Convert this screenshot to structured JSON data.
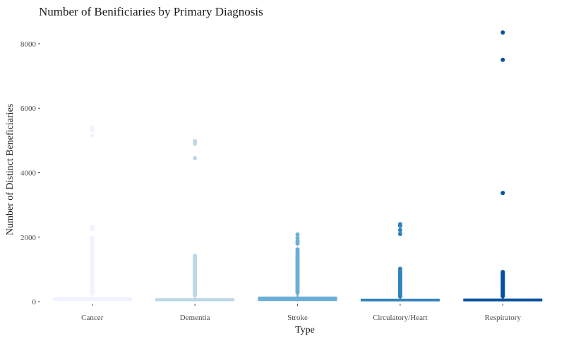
{
  "chart_data": {
    "type": "boxplot",
    "title": "Number of Benificiaries by Primary Diagnosis",
    "xlabel": "Type",
    "ylabel": "Number of Distinct Beneficiaries",
    "ylim": [
      -20,
      8700
    ],
    "y_ticks": [
      0,
      2000,
      4000,
      6000,
      8000
    ],
    "y_tick_labels": [
      "0",
      "2000",
      "4000",
      "6000",
      "8000"
    ],
    "grid": false,
    "legend": "none",
    "categories": [
      "Cancer",
      "Dementia",
      "Stroke",
      "Circulatory/Heart",
      "Respiratory"
    ],
    "colors": [
      "#eff3ff",
      "#bdd7e7",
      "#6baed6",
      "#3182bd",
      "#08519c"
    ],
    "series": [
      {
        "box": {
          "q1": 40,
          "median": 70,
          "q3": 120,
          "whisker_low": 11,
          "whisker_high": 240
        },
        "outliers": [
          5400,
          5320,
          5150,
          2320,
          2260,
          1980,
          1950,
          1920,
          1890,
          1860,
          1820,
          1780,
          1740,
          1700,
          1660,
          1620,
          1580,
          1540,
          1500,
          1460,
          1420,
          1380,
          1340,
          1300,
          1260,
          1220,
          1180,
          1140,
          1100,
          1060,
          1020,
          980,
          940,
          900,
          860,
          820,
          780,
          740,
          700,
          660,
          620,
          580,
          540,
          500,
          460,
          420,
          380,
          340,
          300,
          270
        ]
      },
      {
        "box": {
          "q1": 30,
          "median": 55,
          "q3": 90,
          "whisker_low": 11,
          "whisker_high": 180
        },
        "outliers": [
          4980,
          4900,
          4450,
          1420,
          1390,
          1360,
          1330,
          1300,
          1260,
          1220,
          1180,
          1140,
          1100,
          1060,
          1020,
          980,
          940,
          900,
          860,
          820,
          780,
          740,
          700,
          660,
          620,
          580,
          540,
          500,
          460,
          420,
          380,
          340,
          300,
          260,
          220,
          200
        ]
      },
      {
        "box": {
          "q1": 35,
          "median": 65,
          "q3": 140,
          "whisker_low": 11,
          "whisker_high": 250
        },
        "outliers": [
          2080,
          1970,
          1870,
          1800,
          1620,
          1560,
          1500,
          1440,
          1400,
          1360,
          1320,
          1280,
          1240,
          1200,
          1160,
          1120,
          1080,
          1040,
          1000,
          960,
          920,
          880,
          840,
          800,
          760,
          720,
          680,
          640,
          600,
          560,
          520,
          480,
          440,
          400,
          360,
          320,
          280
        ]
      },
      {
        "box": {
          "q1": 25,
          "median": 45,
          "q3": 75,
          "whisker_low": 11,
          "whisker_high": 140
        },
        "outliers": [
          2400,
          2350,
          2220,
          2100,
          1020,
          980,
          920,
          860,
          820,
          780,
          740,
          700,
          660,
          620,
          580,
          540,
          500,
          460,
          420,
          380,
          340,
          300,
          260,
          220,
          180,
          160
        ]
      },
      {
        "box": {
          "q1": 25,
          "median": 50,
          "q3": 80,
          "whisker_low": 11,
          "whisker_high": 150
        },
        "outliers": [
          8350,
          7500,
          3370,
          920,
          890,
          860,
          830,
          800,
          770,
          740,
          710,
          680,
          650,
          620,
          590,
          560,
          530,
          500,
          470,
          440,
          410,
          380,
          350,
          320,
          290,
          260,
          230,
          200,
          170
        ]
      }
    ]
  }
}
